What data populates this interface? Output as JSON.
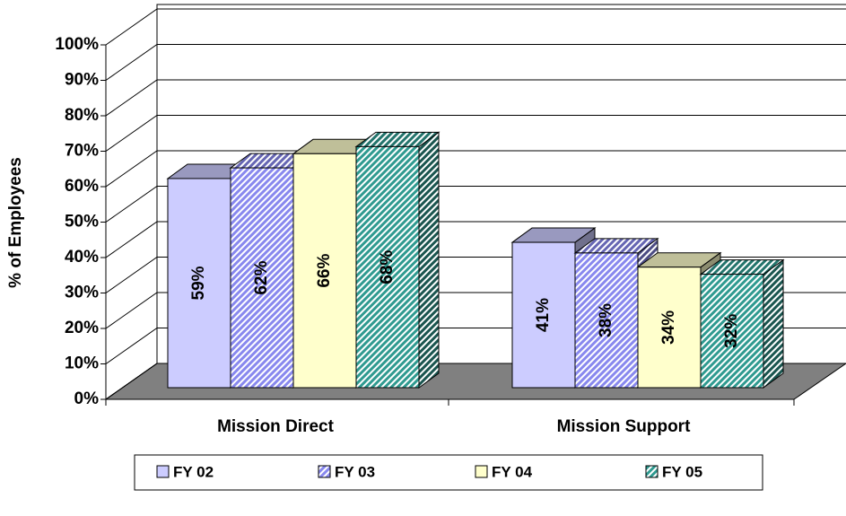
{
  "chart_data": {
    "type": "bar3d",
    "ylabel": "% of Employees",
    "categories": [
      "Mission Direct",
      "Mission Support"
    ],
    "series": [
      {
        "name": "FY 02",
        "color": "#ccccff",
        "hatch": false,
        "values": [
          59,
          41
        ],
        "value_labels": [
          "59%",
          "41%"
        ]
      },
      {
        "name": "FY 03",
        "color": "#8888ee",
        "hatch": true,
        "values": [
          62,
          38
        ],
        "value_labels": [
          "62%",
          "38%"
        ]
      },
      {
        "name": "FY 04",
        "color": "#ffffcc",
        "hatch": false,
        "values": [
          66,
          34
        ],
        "value_labels": [
          "66%",
          "34%"
        ]
      },
      {
        "name": "FY 05",
        "color": "#2f9a90",
        "hatch": true,
        "values": [
          68,
          32
        ],
        "value_labels": [
          "68%",
          "32%"
        ]
      }
    ],
    "ylim": [
      0,
      100
    ],
    "yticks": [
      {
        "value": 0,
        "label": "0%"
      },
      {
        "value": 10,
        "label": "10%"
      },
      {
        "value": 20,
        "label": "20%"
      },
      {
        "value": 30,
        "label": "30%"
      },
      {
        "value": 40,
        "label": "40%"
      },
      {
        "value": 50,
        "label": "50%"
      },
      {
        "value": 60,
        "label": "60%"
      },
      {
        "value": 70,
        "label": "70%"
      },
      {
        "value": 80,
        "label": "80%"
      },
      {
        "value": 90,
        "label": "90%"
      },
      {
        "value": 100,
        "label": "100%"
      }
    ],
    "grid": true,
    "legend": "bottom"
  }
}
